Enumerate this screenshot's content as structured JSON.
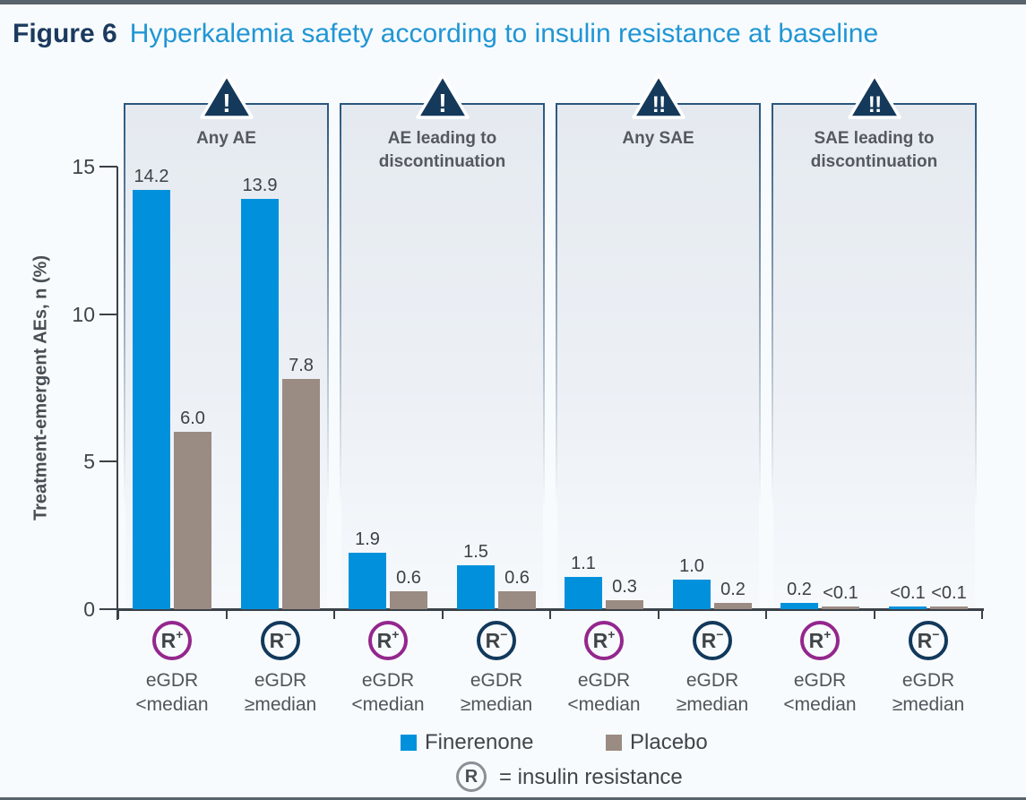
{
  "figure": {
    "label": "Figure 6",
    "title": "Hyperkalemia safety according to insulin resistance at baseline"
  },
  "colors": {
    "finerenone": "#0191DC",
    "placebo": "#9A8B83",
    "warning_triangle": "#14395B",
    "r_plus_circle": "#94278D",
    "r_minus_circle": "#12395C",
    "axis": "#3A4148"
  },
  "y_axis": {
    "label": "Treatment-emergent AEs, n (%)",
    "ticks": [
      0,
      5,
      10,
      15
    ],
    "max": 15
  },
  "legend": {
    "items": [
      {
        "label": "Finerenone",
        "color": "#0191DC"
      },
      {
        "label": "Placebo",
        "color": "#9A8B83"
      }
    ],
    "note": {
      "symbol": "R",
      "text": "= insulin resistance"
    }
  },
  "chart_data": {
    "type": "bar",
    "title": "Hyperkalemia safety according to insulin resistance at baseline",
    "ylabel": "Treatment-emergent AEs, n (%)",
    "ylim": [
      0,
      15
    ],
    "yticks": [
      0,
      5,
      10,
      15
    ],
    "series": [
      "Finerenone",
      "Placebo"
    ],
    "panels": [
      {
        "title_lines": [
          "Any AE"
        ],
        "warning": "!",
        "groups": [
          {
            "marker_base": "R",
            "marker_sign": "+",
            "label_lines": [
              "eGDR",
              "<median"
            ],
            "values": [
              14.2,
              6.0
            ],
            "displays": [
              "14.2",
              "6.0"
            ]
          },
          {
            "marker_base": "R",
            "marker_sign": "−",
            "label_lines": [
              "eGDR",
              "≥median"
            ],
            "values": [
              13.9,
              7.8
            ],
            "displays": [
              "13.9",
              "7.8"
            ]
          }
        ]
      },
      {
        "title_lines": [
          "AE leading to",
          "discontinuation"
        ],
        "warning": "!",
        "groups": [
          {
            "marker_base": "R",
            "marker_sign": "+",
            "label_lines": [
              "eGDR",
              "<median"
            ],
            "values": [
              1.9,
              0.6
            ],
            "displays": [
              "1.9",
              "0.6"
            ]
          },
          {
            "marker_base": "R",
            "marker_sign": "−",
            "label_lines": [
              "eGDR",
              "≥median"
            ],
            "values": [
              1.5,
              0.6
            ],
            "displays": [
              "1.5",
              "0.6"
            ]
          }
        ]
      },
      {
        "title_lines": [
          "Any SAE"
        ],
        "warning": "!!",
        "groups": [
          {
            "marker_base": "R",
            "marker_sign": "+",
            "label_lines": [
              "eGDR",
              "<median"
            ],
            "values": [
              1.1,
              0.3
            ],
            "displays": [
              "1.1",
              "0.3"
            ]
          },
          {
            "marker_base": "R",
            "marker_sign": "−",
            "label_lines": [
              "eGDR",
              "≥median"
            ],
            "values": [
              1.0,
              0.2
            ],
            "displays": [
              "1.0",
              "0.2"
            ]
          }
        ]
      },
      {
        "title_lines": [
          "SAE leading to",
          "discontinuation"
        ],
        "warning": "!!",
        "groups": [
          {
            "marker_base": "R",
            "marker_sign": "+",
            "label_lines": [
              "eGDR",
              "<median"
            ],
            "values": [
              0.2,
              0.08
            ],
            "displays": [
              "0.2",
              "<0.1"
            ]
          },
          {
            "marker_base": "R",
            "marker_sign": "−",
            "label_lines": [
              "eGDR",
              "≥median"
            ],
            "values": [
              0.08,
              0.08
            ],
            "displays": [
              "<0.1",
              "<0.1"
            ]
          }
        ]
      }
    ]
  }
}
